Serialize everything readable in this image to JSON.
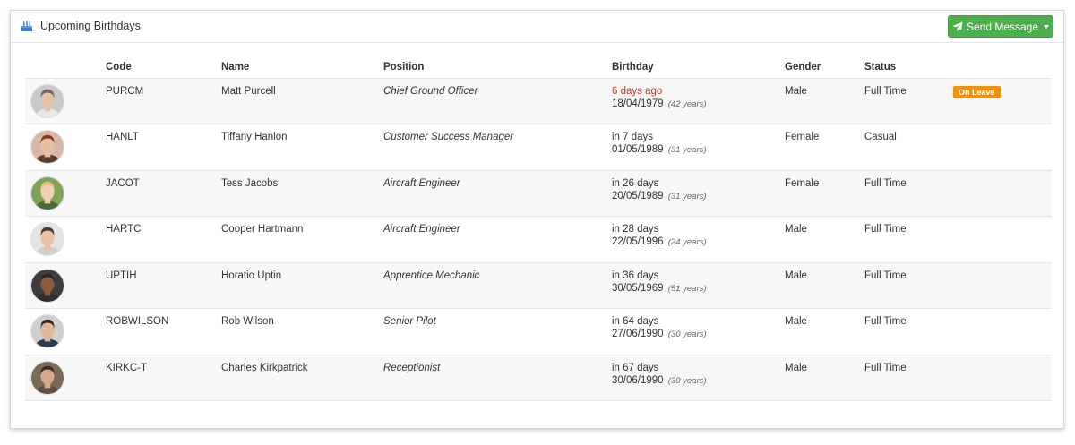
{
  "header": {
    "title": "Upcoming Birthdays",
    "send_button_label": "Send Message"
  },
  "colors": {
    "accent_green": "#4cae4c",
    "soon_red": "#d9322b",
    "leave_orange": "#f0920e"
  },
  "table": {
    "columns": [
      "",
      "Code",
      "Name",
      "Position",
      "Birthday",
      "Gender",
      "Status",
      ""
    ],
    "rows": [
      {
        "code": "PURCM",
        "name": "Matt Purcell",
        "position": "Chief Ground Officer",
        "relative": "6 days ago",
        "date": "18/04/1979",
        "age": "(42 years)",
        "gender": "Male",
        "status": "Full Time",
        "badge": "On Leave",
        "soon": true,
        "avatar": {
          "bg": "#c9c9c9",
          "skin": "#e3c2a6",
          "hair": "#6b6b6b",
          "shirt": "#e8e8e8"
        }
      },
      {
        "code": "HANLT",
        "name": "Tiffany Hanlon",
        "position": "Customer Success Manager",
        "relative": "in 7 days",
        "date": "01/05/1989",
        "age": "(31 years)",
        "gender": "Female",
        "status": "Casual",
        "badge": "",
        "soon": false,
        "avatar": {
          "bg": "#d8b7a4",
          "skin": "#e9bfa3",
          "hair": "#8a3b26",
          "shirt": "#5b3a30"
        }
      },
      {
        "code": "JACOT",
        "name": "Tess Jacobs",
        "position": "Aircraft Engineer",
        "relative": "in 26 days",
        "date": "20/05/1989",
        "age": "(31 years)",
        "gender": "Female",
        "status": "Full Time",
        "badge": "",
        "soon": false,
        "avatar": {
          "bg": "#7fa35a",
          "skin": "#f0cfb2",
          "hair": "#e2c27a",
          "shirt": "#4a6a3a"
        }
      },
      {
        "code": "HARTC",
        "name": "Cooper Hartmann",
        "position": "Aircraft Engineer",
        "relative": "in 28 days",
        "date": "22/05/1996",
        "age": "(24 years)",
        "gender": "Male",
        "status": "Full Time",
        "badge": "",
        "soon": false,
        "avatar": {
          "bg": "#e4e4e4",
          "skin": "#e6c1a5",
          "hair": "#4a3a2e",
          "shirt": "#d0d0d0"
        }
      },
      {
        "code": "UPTIH",
        "name": "Horatio Uptin",
        "position": "Apprentice Mechanic",
        "relative": "in 36 days",
        "date": "30/05/1969",
        "age": "(51 years)",
        "gender": "Male",
        "status": "Full Time",
        "badge": "",
        "soon": false,
        "avatar": {
          "bg": "#3d3d3d",
          "skin": "#8a5a3c",
          "hair": "#2a2a2a",
          "shirt": "#2f2f2f"
        }
      },
      {
        "code": "ROBWILSON",
        "name": "Rob Wilson",
        "position": "Senior Pilot",
        "relative": "in 64 days",
        "date": "27/06/1990",
        "age": "(30 years)",
        "gender": "Male",
        "status": "Full Time",
        "badge": "",
        "soon": false,
        "avatar": {
          "bg": "#cfcfcf",
          "skin": "#e0b898",
          "hair": "#3b2c22",
          "shirt": "#2c3a55"
        }
      },
      {
        "code": "KIRKC-T",
        "name": "Charles Kirkpatrick",
        "position": "Receptionist",
        "relative": "in 67 days",
        "date": "30/06/1990",
        "age": "(30 years)",
        "gender": "Male",
        "status": "Full Time",
        "badge": "",
        "soon": false,
        "avatar": {
          "bg": "#7a6a55",
          "skin": "#d4a888",
          "hair": "#3a2f25",
          "shirt": "#5a5048"
        }
      }
    ]
  }
}
